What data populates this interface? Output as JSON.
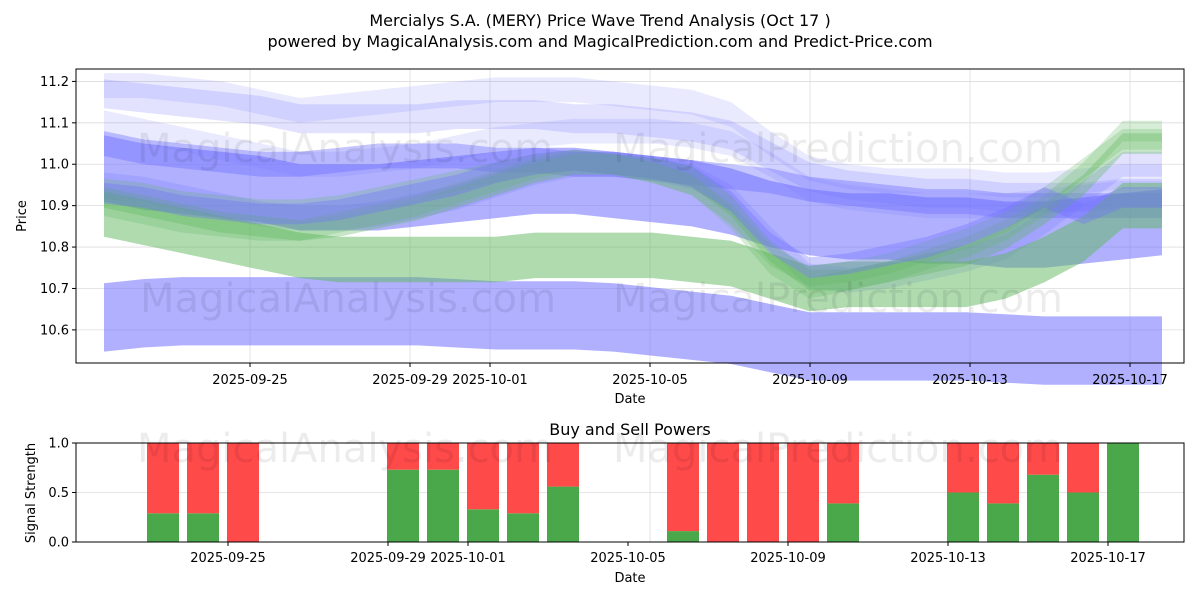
{
  "title_line1": "Mercialys S.A. (MERY) Price Wave Trend Analysis (Oct 17 )",
  "title_line2": "powered by MagicalAnalysis.com and MagicalPrediction.com and Predict-Price.com",
  "watermarks": [
    "MagicalAnalysis.com",
    "MagicalPrediction.com"
  ],
  "colors": {
    "blue": "#6f6fff",
    "green": "#5fb85f",
    "buy": "#4aa84a",
    "sell": "#ff4a4a",
    "grid": "#dcdcdc"
  },
  "chart_data": [
    {
      "type": "area",
      "name": "price-waves",
      "xlabel": "Date",
      "ylabel": "Price",
      "ylim": [
        10.52,
        11.23
      ],
      "yticks": [
        10.6,
        10.7,
        10.8,
        10.9,
        11.0,
        11.1,
        11.2
      ],
      "ytick_labels": [
        "10.6",
        "10.7",
        "10.8",
        "10.9",
        "11.0",
        "11.1",
        "11.2"
      ],
      "x_dates": [
        "2025-09-21",
        "2025-09-22",
        "2025-09-23",
        "2025-09-24",
        "2025-09-25",
        "2025-09-26",
        "2025-09-27",
        "2025-09-28",
        "2025-09-29",
        "2025-09-30",
        "2025-10-01",
        "2025-10-02",
        "2025-10-03",
        "2025-10-04",
        "2025-10-05",
        "2025-10-06",
        "2025-10-07",
        "2025-10-08",
        "2025-10-09",
        "2025-10-10",
        "2025-10-11",
        "2025-10-12",
        "2025-10-13",
        "2025-10-14",
        "2025-10-15",
        "2025-10-16",
        "2025-10-17",
        "2025-10-18"
      ],
      "xlim_index": [
        -0.35,
        27.35
      ],
      "xtick_index": [
        4,
        8,
        10,
        14,
        18,
        22,
        26
      ],
      "xtick_labels": [
        "2025-09-25",
        "2025-09-29",
        "2025-10-01",
        "2025-10-05",
        "2025-10-09",
        "2025-10-13",
        "2025-10-17"
      ],
      "bands": [
        {
          "color": "blue",
          "opacity": 0.55,
          "x_start": 0.35,
          "center": [
            10.63,
            10.64,
            10.645,
            10.645,
            10.645,
            10.645,
            10.645,
            10.645,
            10.645,
            10.64,
            10.635,
            10.635,
            10.635,
            10.63,
            10.62,
            10.61,
            10.6,
            10.58,
            10.56,
            10.56,
            10.56,
            10.56,
            10.56,
            10.555,
            10.55,
            10.55,
            10.55,
            10.55
          ],
          "width": 0.165
        },
        {
          "color": "blue",
          "opacity": 0.55,
          "x_start": 0.35,
          "center": [
            10.99,
            10.97,
            10.96,
            10.95,
            10.94,
            10.92,
            10.92,
            10.92,
            10.93,
            10.94,
            10.95,
            10.96,
            10.96,
            10.95,
            10.94,
            10.93,
            10.91,
            10.88,
            10.86,
            10.85,
            10.85,
            10.84,
            10.84,
            10.83,
            10.83,
            10.84,
            10.85,
            10.86
          ],
          "width": 0.16
        },
        {
          "color": "blue",
          "opacity": 0.4,
          "x_start": 0.35,
          "center": [
            11.05,
            11.03,
            11.02,
            11.01,
            11.0,
            11.0,
            11.01,
            11.02,
            11.02,
            11.02,
            11.01,
            11.01,
            11.0,
            11.0,
            10.99,
            10.98,
            10.97,
            10.96,
            10.94,
            10.93,
            10.92,
            10.91,
            10.91,
            10.9,
            10.9,
            10.9,
            10.9,
            10.9
          ],
          "width": 0.06
        },
        {
          "color": "blue",
          "opacity": 0.2,
          "x_start": 0.35,
          "center": [
            11.17,
            11.16,
            11.15,
            11.14,
            11.13,
            11.11,
            11.11,
            11.11,
            11.11,
            11.12,
            11.12,
            11.12,
            11.11,
            11.11,
            11.1,
            11.09,
            11.07,
            11.02,
            10.97,
            10.95,
            10.94,
            10.93,
            10.93,
            10.92,
            10.92,
            10.92,
            10.93,
            10.93
          ],
          "width": 0.07
        },
        {
          "color": "blue",
          "opacity": 0.15,
          "x_start": 0.35,
          "center": [
            11.19,
            11.19,
            11.18,
            11.17,
            11.15,
            11.13,
            11.14,
            11.15,
            11.16,
            11.17,
            11.18,
            11.18,
            11.18,
            11.17,
            11.16,
            11.15,
            11.12,
            11.05,
            10.99,
            10.97,
            10.96,
            10.96,
            10.96,
            10.95,
            10.95,
            10.96,
            10.97,
            10.97
          ],
          "width": 0.06
        },
        {
          "color": "blue",
          "opacity": 0.15,
          "x_start": 0.35,
          "center": [
            11.1,
            11.08,
            11.06,
            11.04,
            11.02,
            11.0,
            11.0,
            11.01,
            11.02,
            11.04,
            11.06,
            11.07,
            11.08,
            11.08,
            11.08,
            11.07,
            11.05,
            11.0,
            10.94,
            10.92,
            10.91,
            10.9,
            10.9,
            10.9,
            10.91,
            10.92,
            10.93,
            10.93
          ],
          "width": 0.06
        },
        {
          "color": "blue",
          "opacity": 0.2,
          "x_start": 0.35,
          "center": [
            10.95,
            10.94,
            10.92,
            10.9,
            10.88,
            10.87,
            10.87,
            10.88,
            10.9,
            10.92,
            10.95,
            10.98,
            11.0,
            11.0,
            10.99,
            10.97,
            10.92,
            10.82,
            10.73,
            10.72,
            10.73,
            10.75,
            10.77,
            10.8,
            10.86,
            10.93,
            11.0,
            11.0
          ],
          "width": 0.06
        },
        {
          "color": "green",
          "opacity": 0.5,
          "x_start": 0.35,
          "center": [
            10.88,
            10.86,
            10.84,
            10.82,
            10.8,
            10.78,
            10.77,
            10.77,
            10.77,
            10.77,
            10.77,
            10.78,
            10.78,
            10.78,
            10.78,
            10.77,
            10.76,
            10.73,
            10.7,
            10.71,
            10.71,
            10.71,
            10.71,
            10.73,
            10.77,
            10.82,
            10.9,
            10.9
          ],
          "width": 0.11
        },
        {
          "color": "green",
          "opacity": 0.35,
          "x_start": 0.35,
          "center": [
            10.92,
            10.9,
            10.88,
            10.86,
            10.85,
            10.84,
            10.85,
            10.87,
            10.89,
            10.92,
            10.95,
            10.98,
            11.0,
            11.0,
            10.99,
            10.97,
            10.9,
            10.79,
            10.72,
            10.72,
            10.74,
            10.76,
            10.78,
            10.82,
            10.88,
            10.95,
            11.05,
            11.05
          ],
          "width": 0.05
        },
        {
          "color": "green",
          "opacity": 0.25,
          "x_start": 0.35,
          "center": [
            10.9,
            10.88,
            10.86,
            10.85,
            10.84,
            10.84,
            10.86,
            10.88,
            10.9,
            10.93,
            10.96,
            10.99,
            11.01,
            11.0,
            10.98,
            10.95,
            10.87,
            10.76,
            10.7,
            10.72,
            10.74,
            10.77,
            10.8,
            10.84,
            10.9,
            10.98,
            11.08,
            11.08
          ],
          "width": 0.05
        },
        {
          "color": "green",
          "opacity": 0.25,
          "x_start": 0.35,
          "center": [
            10.94,
            10.93,
            10.91,
            10.9,
            10.89,
            10.89,
            10.9,
            10.92,
            10.94,
            10.96,
            10.98,
            11.0,
            11.01,
            11.0,
            10.98,
            10.95,
            10.88,
            10.78,
            10.73,
            10.74,
            10.76,
            10.79,
            10.82,
            10.86,
            10.92,
            10.99,
            11.06,
            11.06
          ],
          "width": 0.05
        },
        {
          "color": "blue",
          "opacity": 0.35,
          "x_start": 0.35,
          "center": [
            10.93,
            10.92,
            10.9,
            10.89,
            10.88,
            10.88,
            10.89,
            10.91,
            10.93,
            10.95,
            10.98,
            11.0,
            11.01,
            11.0,
            10.99,
            10.97,
            10.91,
            10.81,
            10.75,
            10.76,
            10.78,
            10.8,
            10.83,
            10.87,
            10.92,
            10.88,
            10.92,
            10.92
          ],
          "width": 0.05
        }
      ]
    },
    {
      "type": "bar",
      "name": "buy-sell-powers",
      "title": "Buy and Sell Powers",
      "xlabel": "Date",
      "ylabel": "Signal Strength",
      "ylim": [
        0,
        1.0
      ],
      "yticks": [
        0.0,
        0.5,
        1.0
      ],
      "ytick_labels": [
        "0.0",
        "0.5",
        "1.0"
      ],
      "xlim_index": [
        -0.35,
        27.35
      ],
      "xtick_index": [
        4,
        8,
        10,
        14,
        18,
        22,
        26
      ],
      "xtick_labels": [
        "2025-09-25",
        "2025-09-29",
        "2025-10-01",
        "2025-10-05",
        "2025-10-09",
        "2025-10-13",
        "2025-10-17"
      ],
      "bars": [
        {
          "date": "2025-09-23",
          "index": 2,
          "buy": 0.29,
          "sell": 0.71
        },
        {
          "date": "2025-09-24",
          "index": 3,
          "buy": 0.29,
          "sell": 0.71
        },
        {
          "date": "2025-09-25",
          "index": 4,
          "buy": 0.0,
          "sell": 1.0
        },
        {
          "date": "2025-09-29",
          "index": 8,
          "buy": 0.73,
          "sell": 0.27
        },
        {
          "date": "2025-09-30",
          "index": 9,
          "buy": 0.73,
          "sell": 0.27
        },
        {
          "date": "2025-10-01",
          "index": 10,
          "buy": 0.33,
          "sell": 0.67
        },
        {
          "date": "2025-10-02",
          "index": 11,
          "buy": 0.29,
          "sell": 0.71
        },
        {
          "date": "2025-10-03",
          "index": 12,
          "buy": 0.56,
          "sell": 0.44
        },
        {
          "date": "2025-10-06",
          "index": 15,
          "buy": 0.11,
          "sell": 0.89
        },
        {
          "date": "2025-10-07",
          "index": 16,
          "buy": 0.0,
          "sell": 1.0
        },
        {
          "date": "2025-10-08",
          "index": 17,
          "buy": 0.0,
          "sell": 1.0
        },
        {
          "date": "2025-10-09",
          "index": 18,
          "buy": 0.0,
          "sell": 1.0
        },
        {
          "date": "2025-10-10",
          "index": 19,
          "buy": 0.39,
          "sell": 0.61
        },
        {
          "date": "2025-10-13",
          "index": 22,
          "buy": 0.5,
          "sell": 0.5
        },
        {
          "date": "2025-10-14",
          "index": 23,
          "buy": 0.39,
          "sell": 0.61
        },
        {
          "date": "2025-10-15",
          "index": 24,
          "buy": 0.68,
          "sell": 0.32
        },
        {
          "date": "2025-10-16",
          "index": 25,
          "buy": 0.5,
          "sell": 0.5
        },
        {
          "date": "2025-10-17",
          "index": 26,
          "buy": 1.0,
          "sell": 0.0
        }
      ]
    }
  ]
}
